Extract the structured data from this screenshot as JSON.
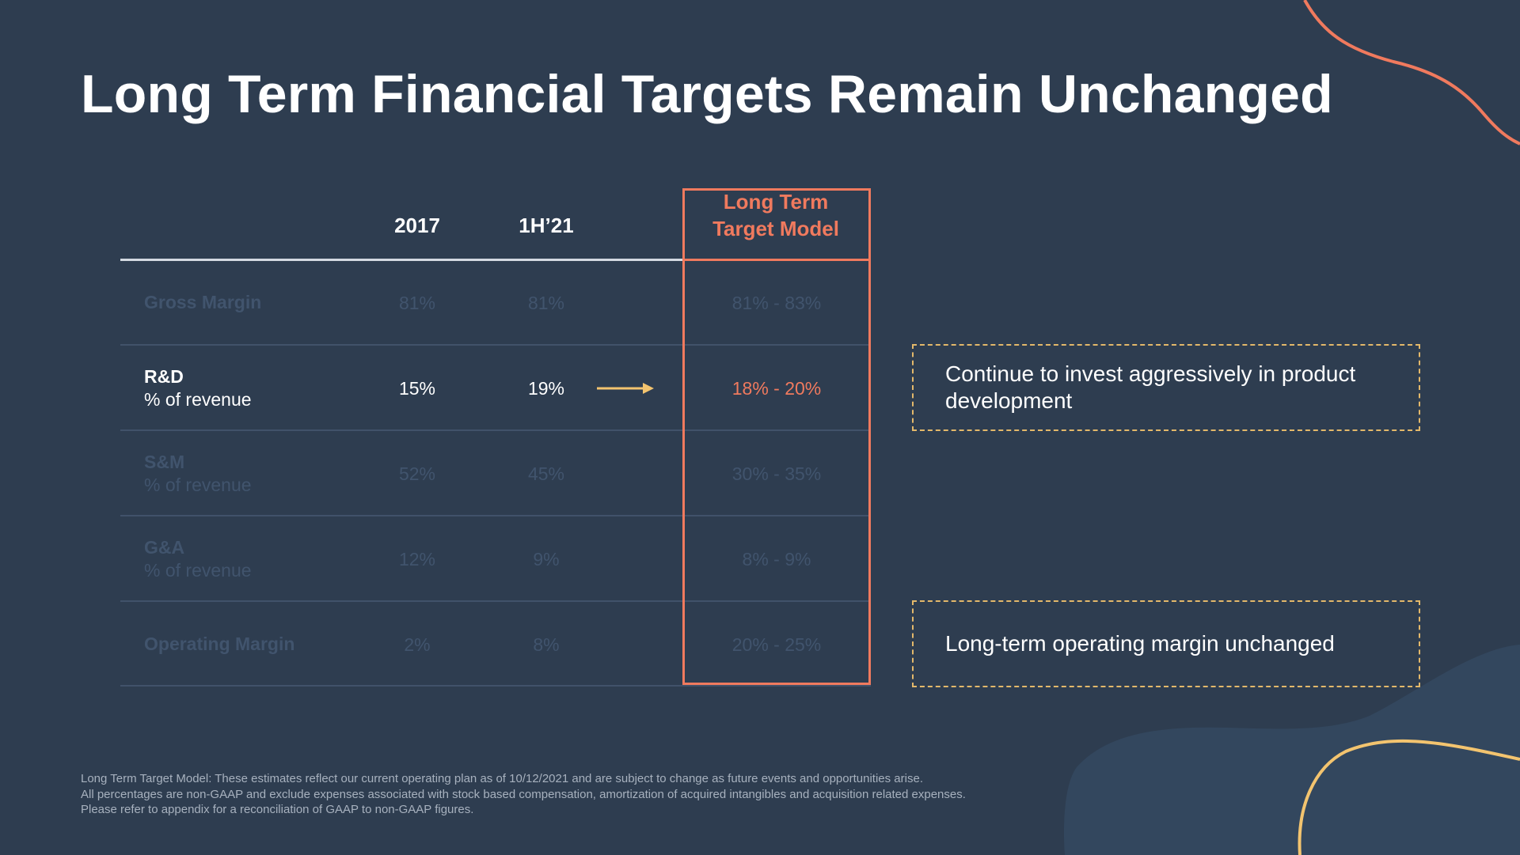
{
  "slide": {
    "title": "Long Term Financial Targets Remain Unchanged"
  },
  "colors": {
    "background": "#2e3d50",
    "accent_coral": "#f07a5e",
    "accent_gold": "#e3b86a",
    "dimmed_text": "#41546d"
  },
  "table": {
    "columns": [
      "2017",
      "1H’21"
    ],
    "target_header": [
      "Long Term",
      "Target Model"
    ],
    "rows": [
      {
        "label": "Gross Margin",
        "sub": "",
        "y2017": "81%",
        "h121": "81%",
        "target": "81% - 83%"
      },
      {
        "label": "R&D",
        "sub": "% of revenue",
        "y2017": "15%",
        "h121": "19%",
        "target": "18% - 20%"
      },
      {
        "label": "S&M",
        "sub": "% of revenue",
        "y2017": "52%",
        "h121": "45%",
        "target": "30% - 35%"
      },
      {
        "label": "G&A",
        "sub": "% of revenue",
        "y2017": "12%",
        "h121": "9%",
        "target": "8% - 9%"
      },
      {
        "label": "Operating Margin",
        "sub": "",
        "y2017": "2%",
        "h121": "8%",
        "target": "20% - 25%"
      }
    ]
  },
  "notes": {
    "rd": "Continue to invest aggressively in product development",
    "operating": "Long-term operating margin unchanged"
  },
  "footnotes": [
    "Long Term Target Model: These estimates reflect our current operating plan as of 10/12/2021 and are subject to change as future events and opportunities arise.",
    "All percentages are non-GAAP and exclude expenses associated with stock based compensation, amortization of acquired intangibles and acquisition related expenses.",
    "Please refer to appendix for a reconciliation of GAAP to non-GAAP figures."
  ]
}
